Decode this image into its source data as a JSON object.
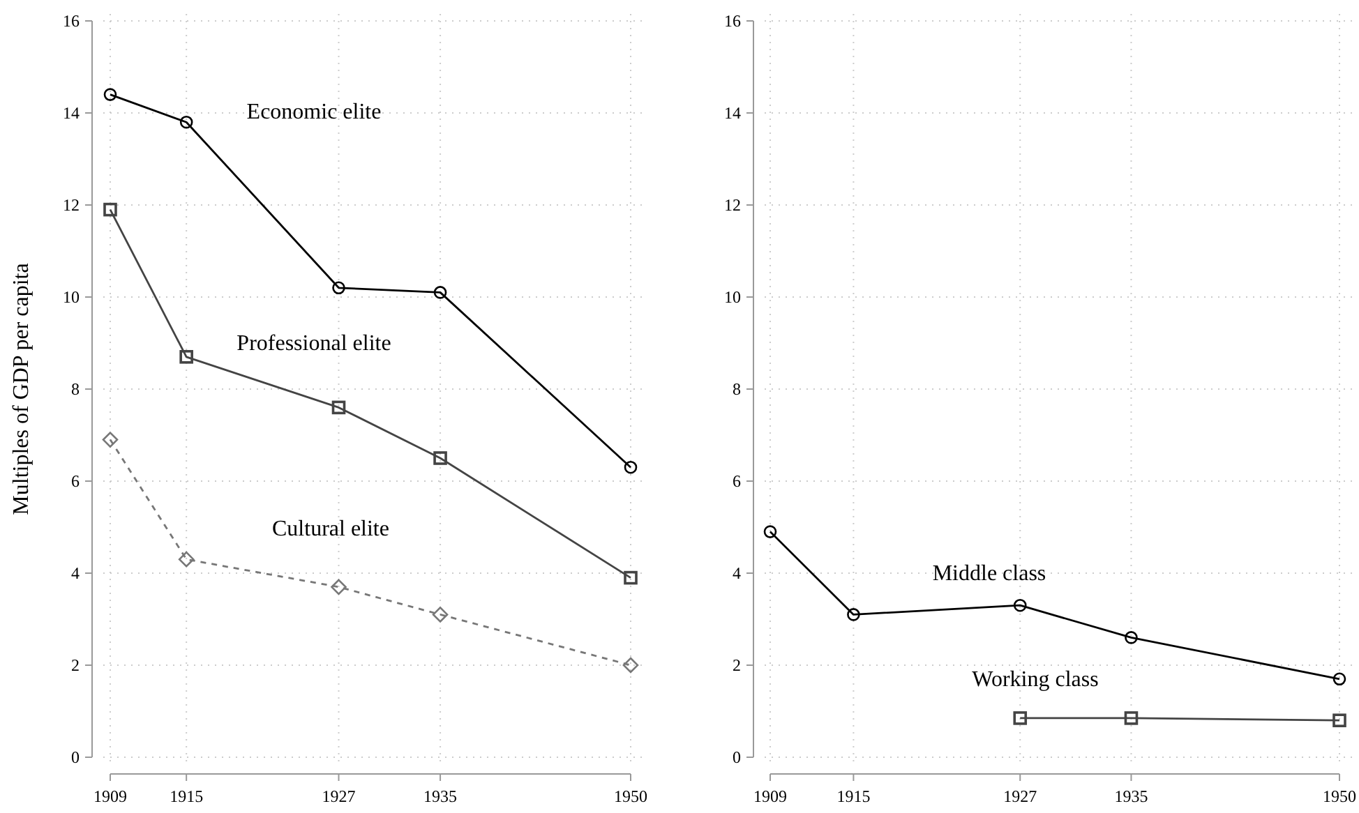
{
  "chart_data": [
    {
      "type": "line",
      "ylabel": "Multiples of GDP per capita",
      "x": [
        1909,
        1915,
        1927,
        1935,
        1950
      ],
      "xlim": [
        1909,
        1950
      ],
      "xticks": [
        1909,
        1915,
        1927,
        1935,
        1950
      ],
      "ylim": [
        0,
        16
      ],
      "yticks": [
        0,
        2,
        4,
        6,
        8,
        10,
        12,
        14,
        16
      ],
      "grid": true,
      "series": [
        {
          "name": "Economic elite",
          "color": "#000000",
          "marker": "circle",
          "line_style": "solid",
          "values": [
            14.4,
            13.8,
            10.2,
            10.1,
            6.3
          ]
        },
        {
          "name": "Professional elite",
          "color": "#444444",
          "marker": "square",
          "line_style": "solid",
          "values": [
            11.9,
            8.7,
            7.6,
            6.5,
            3.9
          ]
        },
        {
          "name": "Cultural elite",
          "color": "#777777",
          "marker": "diamond",
          "line_style": "dashed",
          "values": [
            6.9,
            4.3,
            3.7,
            3.1,
            2.0
          ]
        }
      ]
    },
    {
      "type": "line",
      "x": [
        1909,
        1915,
        1927,
        1935,
        1950
      ],
      "xlim": [
        1909,
        1950
      ],
      "xticks": [
        1909,
        1915,
        1927,
        1935,
        1950
      ],
      "ylim": [
        0,
        16
      ],
      "yticks": [
        0,
        2,
        4,
        6,
        8,
        10,
        12,
        14,
        16
      ],
      "grid": true,
      "series": [
        {
          "name": "Middle class",
          "color": "#000000",
          "marker": "circle",
          "line_style": "solid",
          "values": [
            4.9,
            3.1,
            3.3,
            2.6,
            1.7
          ]
        },
        {
          "name": "Working class",
          "color": "#444444",
          "marker": "square",
          "line_style": "solid",
          "values": [
            null,
            null,
            0.85,
            0.85,
            0.8
          ]
        }
      ]
    }
  ]
}
